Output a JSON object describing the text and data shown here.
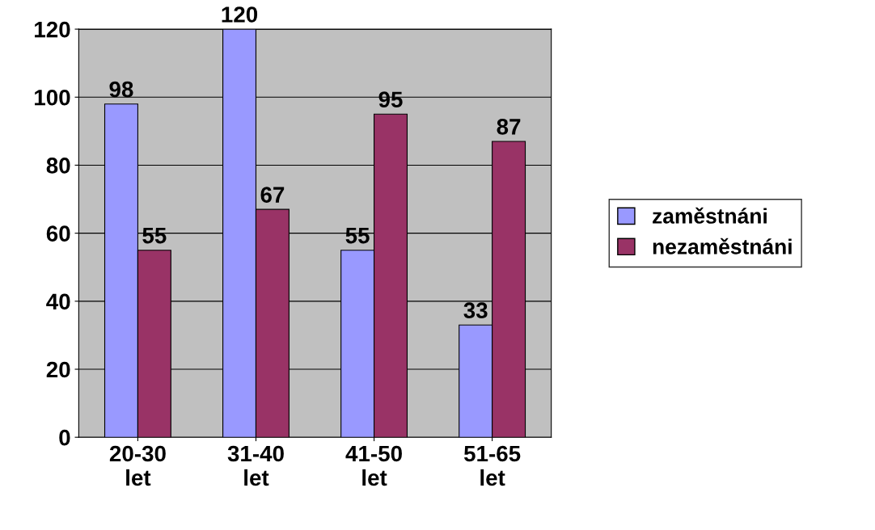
{
  "chart_data": {
    "type": "bar",
    "categories": [
      "20-30 let",
      "31-40 let",
      "41-50 let",
      "51-65 let"
    ],
    "series": [
      {
        "name": "zaměstnáni",
        "color": "#9999ff",
        "values": [
          98,
          120,
          55,
          33
        ]
      },
      {
        "name": "nezaměstnáni",
        "color": "#993366",
        "values": [
          55,
          67,
          95,
          87
        ]
      }
    ],
    "ylim": [
      0,
      120
    ],
    "yticks": [
      0,
      20,
      40,
      60,
      80,
      100,
      120
    ],
    "grid": "y",
    "legend": "right",
    "data_labels": true
  }
}
